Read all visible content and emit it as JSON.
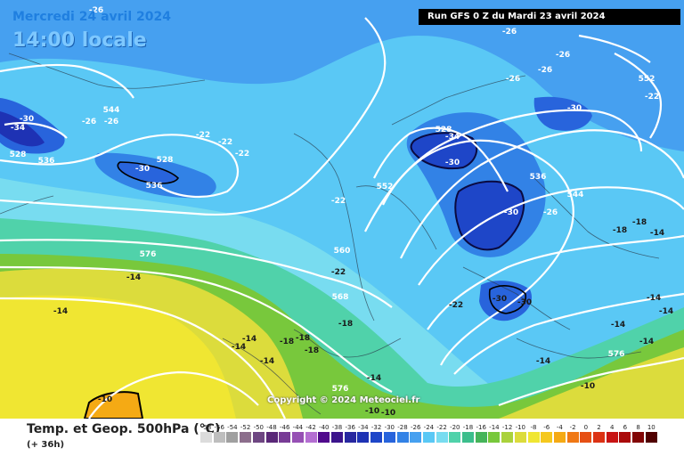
{
  "header": {
    "date": "Mercredi 24 avril 2024",
    "time_local": "14:00 locale",
    "run_info": "Run GFS 0 Z du Mardi 23 avril 2024"
  },
  "copyright": "Copyright © 2024 Meteociel.fr",
  "legend": {
    "title": "Temp. et Geop. 500hPa (°C)",
    "subtitle": "(+ 36h)",
    "unit_icon": "temperature-unit-icon",
    "ticks": [
      "-58",
      "-56",
      "-54",
      "-52",
      "-50",
      "-48",
      "-46",
      "-44",
      "-42",
      "-40",
      "-38",
      "-36",
      "-34",
      "-32",
      "-30",
      "-28",
      "-26",
      "-24",
      "-22",
      "-20",
      "-18",
      "-16",
      "-14",
      "-12",
      "-10",
      "-8",
      "-6",
      "-4",
      "-2",
      "0",
      "2",
      "4",
      "6",
      "8",
      "10"
    ],
    "colors": [
      "#dcdcdc",
      "#bebebe",
      "#a0a0a0",
      "#8c6e8c",
      "#6e4682",
      "#5a2878",
      "#783c96",
      "#9650b4",
      "#b46ed2",
      "#500a8c",
      "#3c148c",
      "#2828a0",
      "#1e32b4",
      "#1e46c8",
      "#2864dc",
      "#3282e6",
      "#46a0f0",
      "#5ac8f5",
      "#78dcf0",
      "#50d2aa",
      "#3cbe8c",
      "#46b45a",
      "#78c83c",
      "#aad23c",
      "#dcdc3c",
      "#f0e632",
      "#f5c81e",
      "#f5aa14",
      "#f07814",
      "#e65014",
      "#dc3214",
      "#c81414",
      "#aa0a0a",
      "#820505",
      "#500000"
    ]
  },
  "map_labels": {
    "geopotential": [
      "528",
      "536",
      "544",
      "552",
      "560",
      "568",
      "576"
    ],
    "temperature": [
      "-10",
      "-14",
      "-18",
      "-22",
      "-26",
      "-30",
      "-34"
    ],
    "items": [
      {
        "text": "-26",
        "kind": "temp"
      },
      {
        "text": "-30",
        "kind": "temp"
      },
      {
        "text": "-26",
        "kind": "temp"
      },
      {
        "text": "-26",
        "kind": "temp"
      },
      {
        "text": "-34",
        "kind": "temp"
      },
      {
        "text": "528",
        "kind": "geo"
      },
      {
        "text": "536",
        "kind": "geo"
      },
      {
        "text": "544",
        "kind": "geo"
      },
      {
        "text": "-22",
        "kind": "temp"
      },
      {
        "text": "-22",
        "kind": "temp"
      },
      {
        "text": "-22",
        "kind": "temp"
      },
      {
        "text": "-30",
        "kind": "temp"
      },
      {
        "text": "528",
        "kind": "geo"
      },
      {
        "text": "536",
        "kind": "geo"
      },
      {
        "text": "-22",
        "kind": "temp"
      },
      {
        "text": "552",
        "kind": "geo"
      },
      {
        "text": "576",
        "kind": "geo"
      },
      {
        "text": "-14",
        "kind": "temp"
      },
      {
        "text": "-14",
        "kind": "temp"
      },
      {
        "text": "560",
        "kind": "geo"
      },
      {
        "text": "-22",
        "kind": "temp"
      },
      {
        "text": "568",
        "kind": "geo"
      },
      {
        "text": "-18",
        "kind": "temp"
      },
      {
        "text": "-18",
        "kind": "temp"
      },
      {
        "text": "-18",
        "kind": "temp"
      },
      {
        "text": "-18",
        "kind": "temp"
      },
      {
        "text": "-14",
        "kind": "temp"
      },
      {
        "text": "-14",
        "kind": "temp"
      },
      {
        "text": "-14",
        "kind": "temp"
      },
      {
        "text": "-10",
        "kind": "temp"
      },
      {
        "text": "-14",
        "kind": "temp"
      },
      {
        "text": "576",
        "kind": "geo"
      },
      {
        "text": "-10",
        "kind": "temp"
      },
      {
        "text": "528",
        "kind": "geo"
      },
      {
        "text": "-34",
        "kind": "temp"
      },
      {
        "text": "-30",
        "kind": "temp"
      },
      {
        "text": "-26",
        "kind": "temp"
      },
      {
        "text": "-26",
        "kind": "temp"
      },
      {
        "text": "-26",
        "kind": "temp"
      },
      {
        "text": "-26",
        "kind": "temp"
      },
      {
        "text": "-30",
        "kind": "temp"
      },
      {
        "text": "552",
        "kind": "geo"
      },
      {
        "text": "-22",
        "kind": "temp"
      },
      {
        "text": "536",
        "kind": "geo"
      },
      {
        "text": "-30",
        "kind": "temp"
      },
      {
        "text": "-26",
        "kind": "temp"
      },
      {
        "text": "544",
        "kind": "geo"
      },
      {
        "text": "-18",
        "kind": "temp"
      },
      {
        "text": "-18",
        "kind": "temp"
      },
      {
        "text": "-14",
        "kind": "temp"
      },
      {
        "text": "-30",
        "kind": "temp"
      },
      {
        "text": "-30",
        "kind": "temp"
      },
      {
        "text": "-22",
        "kind": "temp"
      },
      {
        "text": "-14",
        "kind": "temp"
      },
      {
        "text": "-14",
        "kind": "temp"
      },
      {
        "text": "-14",
        "kind": "temp"
      },
      {
        "text": "-14",
        "kind": "temp"
      },
      {
        "text": "576",
        "kind": "geo"
      },
      {
        "text": "-14",
        "kind": "temp"
      },
      {
        "text": "-10",
        "kind": "temp"
      },
      {
        "text": "-10",
        "kind": "temp"
      }
    ]
  }
}
